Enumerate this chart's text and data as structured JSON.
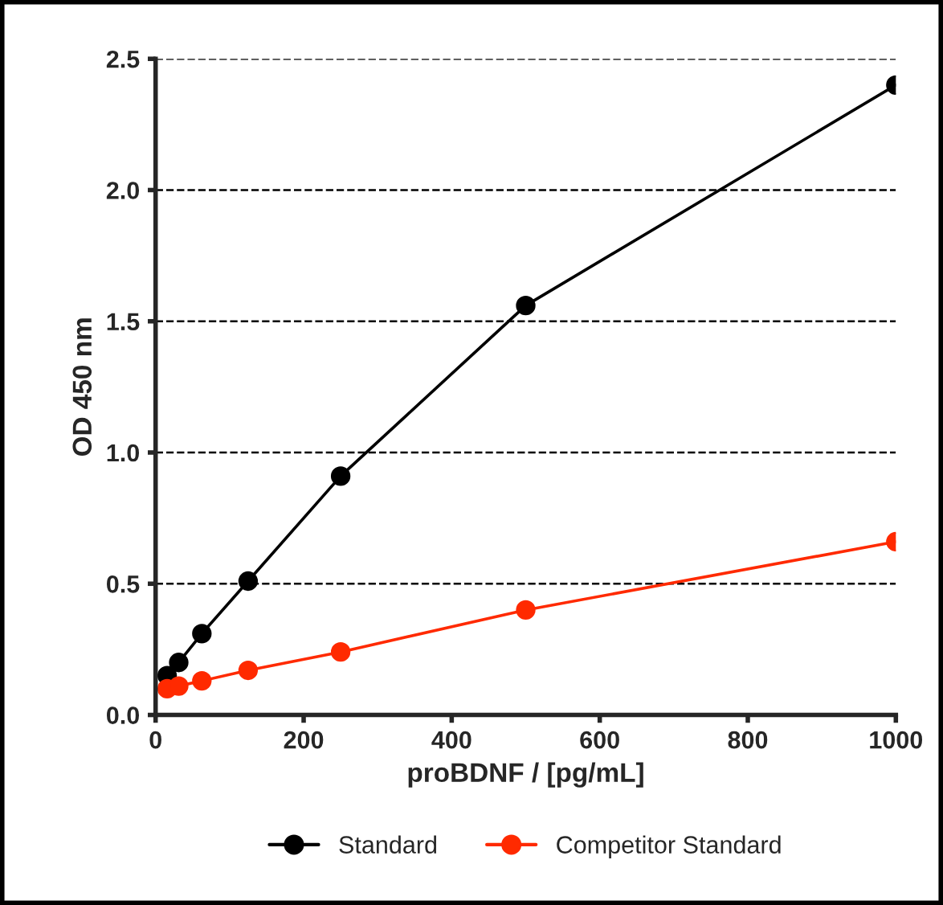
{
  "chart_data": {
    "type": "line",
    "xlabel": "proBDNF / [pg/mL]",
    "ylabel": "OD 450 nm",
    "series": [
      {
        "name": "Standard",
        "color": "#000000",
        "x": [
          15.6,
          31.25,
          62.5,
          125,
          250,
          500,
          1000
        ],
        "values": [
          0.15,
          0.2,
          0.31,
          0.51,
          0.91,
          1.56,
          2.4
        ]
      },
      {
        "name": "Competitor Standard",
        "color": "#ff2a00",
        "x": [
          15.6,
          31.25,
          62.5,
          125,
          250,
          500,
          1000
        ],
        "values": [
          0.1,
          0.11,
          0.13,
          0.17,
          0.24,
          0.4,
          0.66
        ]
      }
    ],
    "xlim": [
      0,
      1000
    ],
    "xticks": [
      0,
      200,
      400,
      600,
      800,
      1000
    ],
    "ylim": [
      0,
      2.5
    ],
    "yticks": [
      {
        "value": 0,
        "label": "0.0"
      },
      0.5,
      {
        "value": 1,
        "label": "1.0"
      },
      1.5,
      {
        "value": 2,
        "label": "2.0"
      },
      2.5
    ],
    "grid": "y",
    "legend": "bottom",
    "marker": "circle",
    "line_style": "solid"
  }
}
